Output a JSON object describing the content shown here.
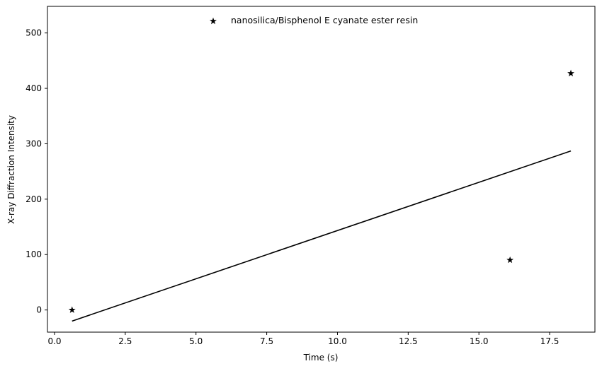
{
  "chart_data": {
    "type": "scatter",
    "xlabel": "Time (s)",
    "ylabel": "X-ray Diffraction Intensity",
    "xlim": [
      -0.25,
      19.1
    ],
    "ylim": [
      -40,
      548
    ],
    "xticks": [
      0.0,
      2.5,
      5.0,
      7.5,
      10.0,
      12.5,
      15.0,
      17.5
    ],
    "xtick_labels": [
      "0.0",
      "2.5",
      "5.0",
      "7.5",
      "10.0",
      "12.5",
      "15.0",
      "17.5"
    ],
    "yticks": [
      0,
      100,
      200,
      300,
      400,
      500
    ],
    "ytick_labels": [
      "0",
      "100",
      "200",
      "300",
      "400",
      "500"
    ],
    "grid": false,
    "legend_position": "upper-center",
    "series": [
      {
        "name": "nanosilica/Bisphenol E cyanate ester resin",
        "marker": "star",
        "color": "#000000",
        "points": [
          {
            "x": 0.62,
            "y": 0
          },
          {
            "x": 16.1,
            "y": 90
          },
          {
            "x": 18.25,
            "y": 427
          }
        ]
      }
    ],
    "fit_line": {
      "color": "#000000",
      "points": [
        {
          "x": 0.62,
          "y": -20
        },
        {
          "x": 18.25,
          "y": 287
        }
      ]
    }
  }
}
